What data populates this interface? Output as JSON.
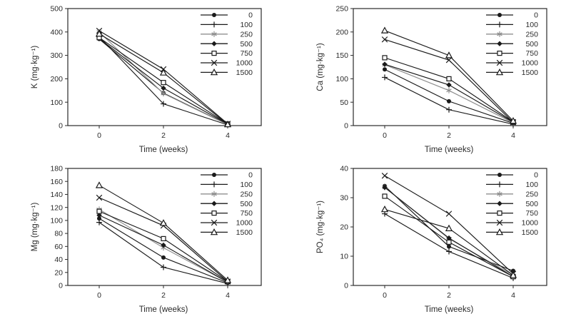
{
  "figure": {
    "background": "#ffffff",
    "axis_color": "#2a2a2a",
    "series_color": "#1a1a1a",
    "muted_series_color": "#8f8f8f",
    "xlabel": "Time (weeks)",
    "x_tick_labels": [
      "0",
      "2",
      "4"
    ],
    "legend_labels": [
      "0",
      "100",
      "250",
      "500",
      "750",
      "1000",
      "1500"
    ]
  },
  "chart_data": [
    {
      "type": "line",
      "name": "K",
      "ylabel": "K (mg·kg⁻¹)",
      "xlabel": "Time (weeks)",
      "x": [
        0,
        2,
        4
      ],
      "x_tick_labels": [
        "0",
        "2",
        "4"
      ],
      "ylim": [
        0,
        500
      ],
      "ytick_step": 100,
      "grid": false,
      "legend_position": "top-right",
      "series": [
        {
          "name": "0",
          "marker": "circle-filled",
          "values": [
            370,
            139,
            5
          ]
        },
        {
          "name": "100",
          "marker": "plus",
          "values": [
            380,
            93,
            3
          ]
        },
        {
          "name": "250",
          "marker": "asterisk",
          "values": [
            400,
            137,
            4
          ],
          "color": "#8f8f8f"
        },
        {
          "name": "500",
          "marker": "diamond-filled",
          "values": [
            372,
            160,
            6
          ]
        },
        {
          "name": "750",
          "marker": "square-open",
          "values": [
            376,
            184,
            7
          ]
        },
        {
          "name": "1000",
          "marker": "x",
          "values": [
            405,
            241,
            8
          ]
        },
        {
          "name": "1500",
          "marker": "triangle-open",
          "values": [
            392,
            226,
            5
          ]
        }
      ]
    },
    {
      "type": "line",
      "name": "Ca",
      "ylabel": "Ca (mg·kg⁻¹)",
      "xlabel": "Time (weeks)",
      "x": [
        0,
        2,
        4
      ],
      "x_tick_labels": [
        "0",
        "2",
        "4"
      ],
      "ylim": [
        0,
        250
      ],
      "ytick_step": 50,
      "grid": false,
      "legend_position": "top-right",
      "series": [
        {
          "name": "0",
          "marker": "circle-filled",
          "values": [
            120,
            52,
            5
          ]
        },
        {
          "name": "100",
          "marker": "plus",
          "values": [
            103,
            34,
            3
          ]
        },
        {
          "name": "250",
          "marker": "asterisk",
          "values": [
            130,
            75,
            6
          ],
          "color": "#8f8f8f"
        },
        {
          "name": "500",
          "marker": "diamond-filled",
          "values": [
            131,
            87,
            7
          ]
        },
        {
          "name": "750",
          "marker": "square-open",
          "values": [
            145,
            100,
            8
          ]
        },
        {
          "name": "1000",
          "marker": "x",
          "values": [
            184,
            140,
            7
          ]
        },
        {
          "name": "1500",
          "marker": "triangle-open",
          "values": [
            203,
            150,
            10
          ]
        }
      ]
    },
    {
      "type": "line",
      "name": "Mg",
      "ylabel": "Mg (mg·kg⁻¹)",
      "xlabel": "Time (weeks)",
      "x": [
        0,
        2,
        4
      ],
      "x_tick_labels": [
        "0",
        "2",
        "4"
      ],
      "ylim": [
        0,
        180
      ],
      "ytick_step": 20,
      "grid": false,
      "legend_position": "top-right",
      "series": [
        {
          "name": "0",
          "marker": "circle-filled",
          "values": [
            103,
            43,
            4
          ]
        },
        {
          "name": "100",
          "marker": "plus",
          "values": [
            97,
            28,
            3
          ]
        },
        {
          "name": "250",
          "marker": "asterisk",
          "values": [
            117,
            58,
            5
          ],
          "color": "#8f8f8f"
        },
        {
          "name": "500",
          "marker": "diamond-filled",
          "values": [
            108,
            62,
            5
          ]
        },
        {
          "name": "750",
          "marker": "square-open",
          "values": [
            114,
            72,
            6
          ]
        },
        {
          "name": "1000",
          "marker": "x",
          "values": [
            135,
            92,
            6
          ]
        },
        {
          "name": "1500",
          "marker": "triangle-open",
          "values": [
            154,
            96,
            8
          ]
        }
      ]
    },
    {
      "type": "line",
      "name": "PO4",
      "ylabel": "PO₄ (mg·kg⁻¹)",
      "xlabel": "Time (weeks)",
      "x": [
        0,
        2,
        4
      ],
      "x_tick_labels": [
        "0",
        "2",
        "4"
      ],
      "ylim": [
        0,
        40
      ],
      "ytick_step": 10,
      "grid": false,
      "legend_position": "top-right",
      "series": [
        {
          "name": "0",
          "marker": "circle-filled",
          "values": [
            34,
            13.3,
            5
          ]
        },
        {
          "name": "100",
          "marker": "plus",
          "values": [
            24.5,
            11.6,
            2.5
          ]
        },
        {
          "name": "250",
          "marker": "asterisk",
          "values": [
            33.5,
            16,
            3.5
          ],
          "color": "#8f8f8f"
        },
        {
          "name": "500",
          "marker": "diamond-filled",
          "values": [
            33.5,
            16.2,
            3
          ]
        },
        {
          "name": "750",
          "marker": "square-open",
          "values": [
            30.5,
            14.8,
            3
          ]
        },
        {
          "name": "1000",
          "marker": "x",
          "values": [
            37.5,
            24.5,
            4
          ]
        },
        {
          "name": "1500",
          "marker": "triangle-open",
          "values": [
            26,
            19.5,
            3.5
          ]
        }
      ]
    }
  ]
}
